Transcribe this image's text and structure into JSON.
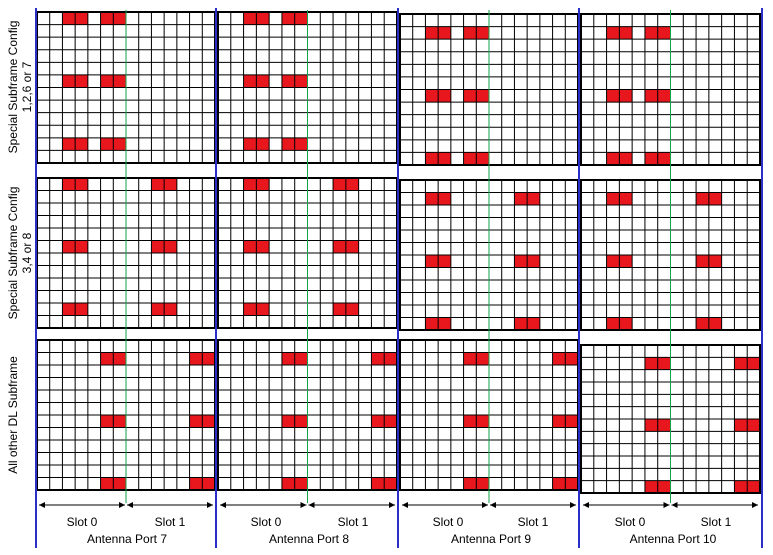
{
  "colors": {
    "grid": "#000000",
    "re": "#e8171d",
    "slot_divider": "#12a24a",
    "blue": "#2a2fc8"
  },
  "row_labels": [
    [
      "Special Subframe Config",
      "1,2,6 or 7"
    ],
    [
      "Special Subframe Config",
      "3,4  or 8"
    ],
    [
      "All other DL  Subframe"
    ]
  ],
  "ports": [
    {
      "name": "Antenna Port 7",
      "slot0": "Slot 0",
      "slot1": "Slot 1"
    },
    {
      "name": "Antenna Port 8",
      "slot0": "Slot 0",
      "slot1": "Slot 1"
    },
    {
      "name": "Antenna Port 9",
      "slot0": "Slot 0",
      "slot1": "Slot 1"
    },
    {
      "name": "Antenna Port 10",
      "slot0": "Slot 0",
      "slot1": "Slot 1"
    }
  ],
  "grid": {
    "cols": 14,
    "rows": 12
  },
  "patterns": [
    [
      {
        "cols": [
          2,
          3,
          5,
          6
        ],
        "rows": [
          0,
          5,
          10
        ]
      },
      {
        "cols": [
          2,
          3,
          9,
          10
        ],
        "rows": [
          0,
          5,
          10
        ]
      },
      {
        "cols": [
          5,
          6,
          12,
          13
        ],
        "rows": [
          1,
          6,
          11
        ]
      }
    ],
    [
      {
        "cols": [
          2,
          3,
          5,
          6
        ],
        "rows": [
          0,
          5,
          10
        ]
      },
      {
        "cols": [
          2,
          3,
          9,
          10
        ],
        "rows": [
          0,
          5,
          10
        ]
      },
      {
        "cols": [
          5,
          6,
          12,
          13
        ],
        "rows": [
          1,
          6,
          11
        ]
      }
    ],
    [
      {
        "cols": [
          2,
          3,
          5,
          6
        ],
        "rows": [
          1,
          6,
          11
        ]
      },
      {
        "cols": [
          2,
          3,
          9,
          10
        ],
        "rows": [
          1,
          6,
          11
        ]
      },
      {
        "cols": [
          5,
          6,
          12,
          13
        ],
        "rows": [
          1,
          6,
          11
        ]
      }
    ],
    [
      {
        "cols": [
          2,
          3,
          5,
          6
        ],
        "rows": [
          1,
          6,
          11
        ]
      },
      {
        "cols": [
          2,
          3,
          9,
          10
        ],
        "rows": [
          1,
          6,
          11
        ]
      },
      {
        "cols": [
          5,
          6,
          12,
          13
        ],
        "rows": [
          1,
          6,
          11
        ]
      }
    ]
  ]
}
